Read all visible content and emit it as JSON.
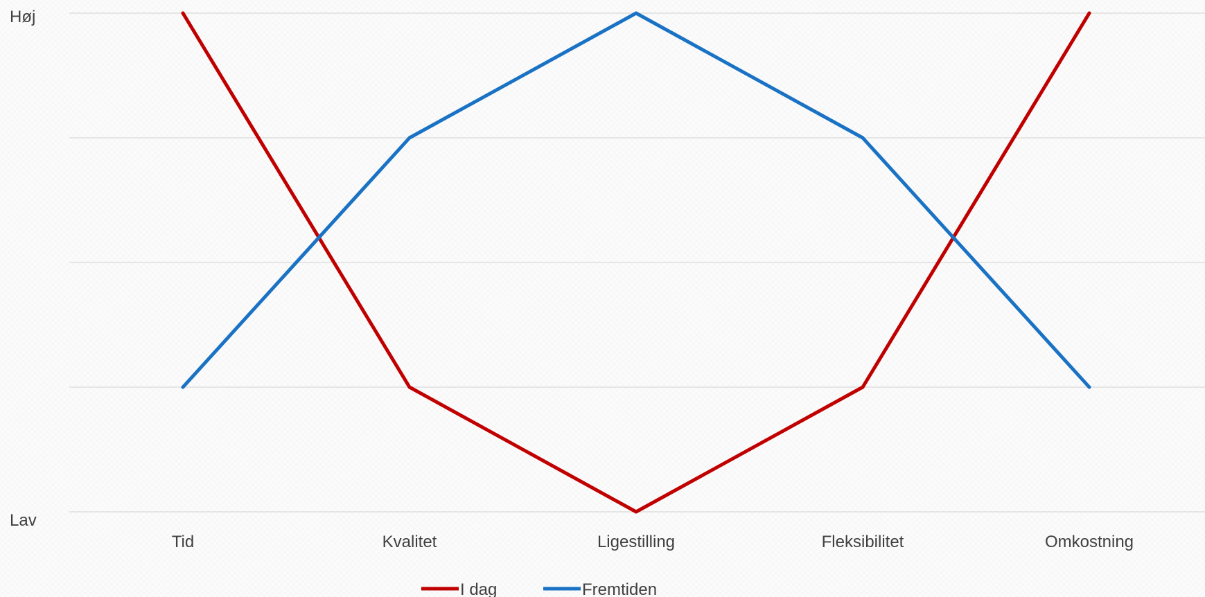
{
  "chart_data": {
    "type": "line",
    "title": "",
    "xlabel": "",
    "ylabel": "",
    "categories": [
      "Tid",
      "Kvalitet",
      "Ligestilling",
      "Fleksibilitet",
      "Omkostning"
    ],
    "y_tick_labels": {
      "top": "Høj",
      "bottom": "Lav"
    },
    "ylim": [
      0,
      4
    ],
    "grid": true,
    "legend_position": "bottom",
    "series": [
      {
        "name": "I dag",
        "color": "#c00000",
        "values": [
          4,
          1,
          0,
          1,
          4
        ]
      },
      {
        "name": "Fremtiden",
        "color": "#1a72c4",
        "values": [
          1,
          3,
          4,
          3,
          1
        ]
      }
    ]
  }
}
